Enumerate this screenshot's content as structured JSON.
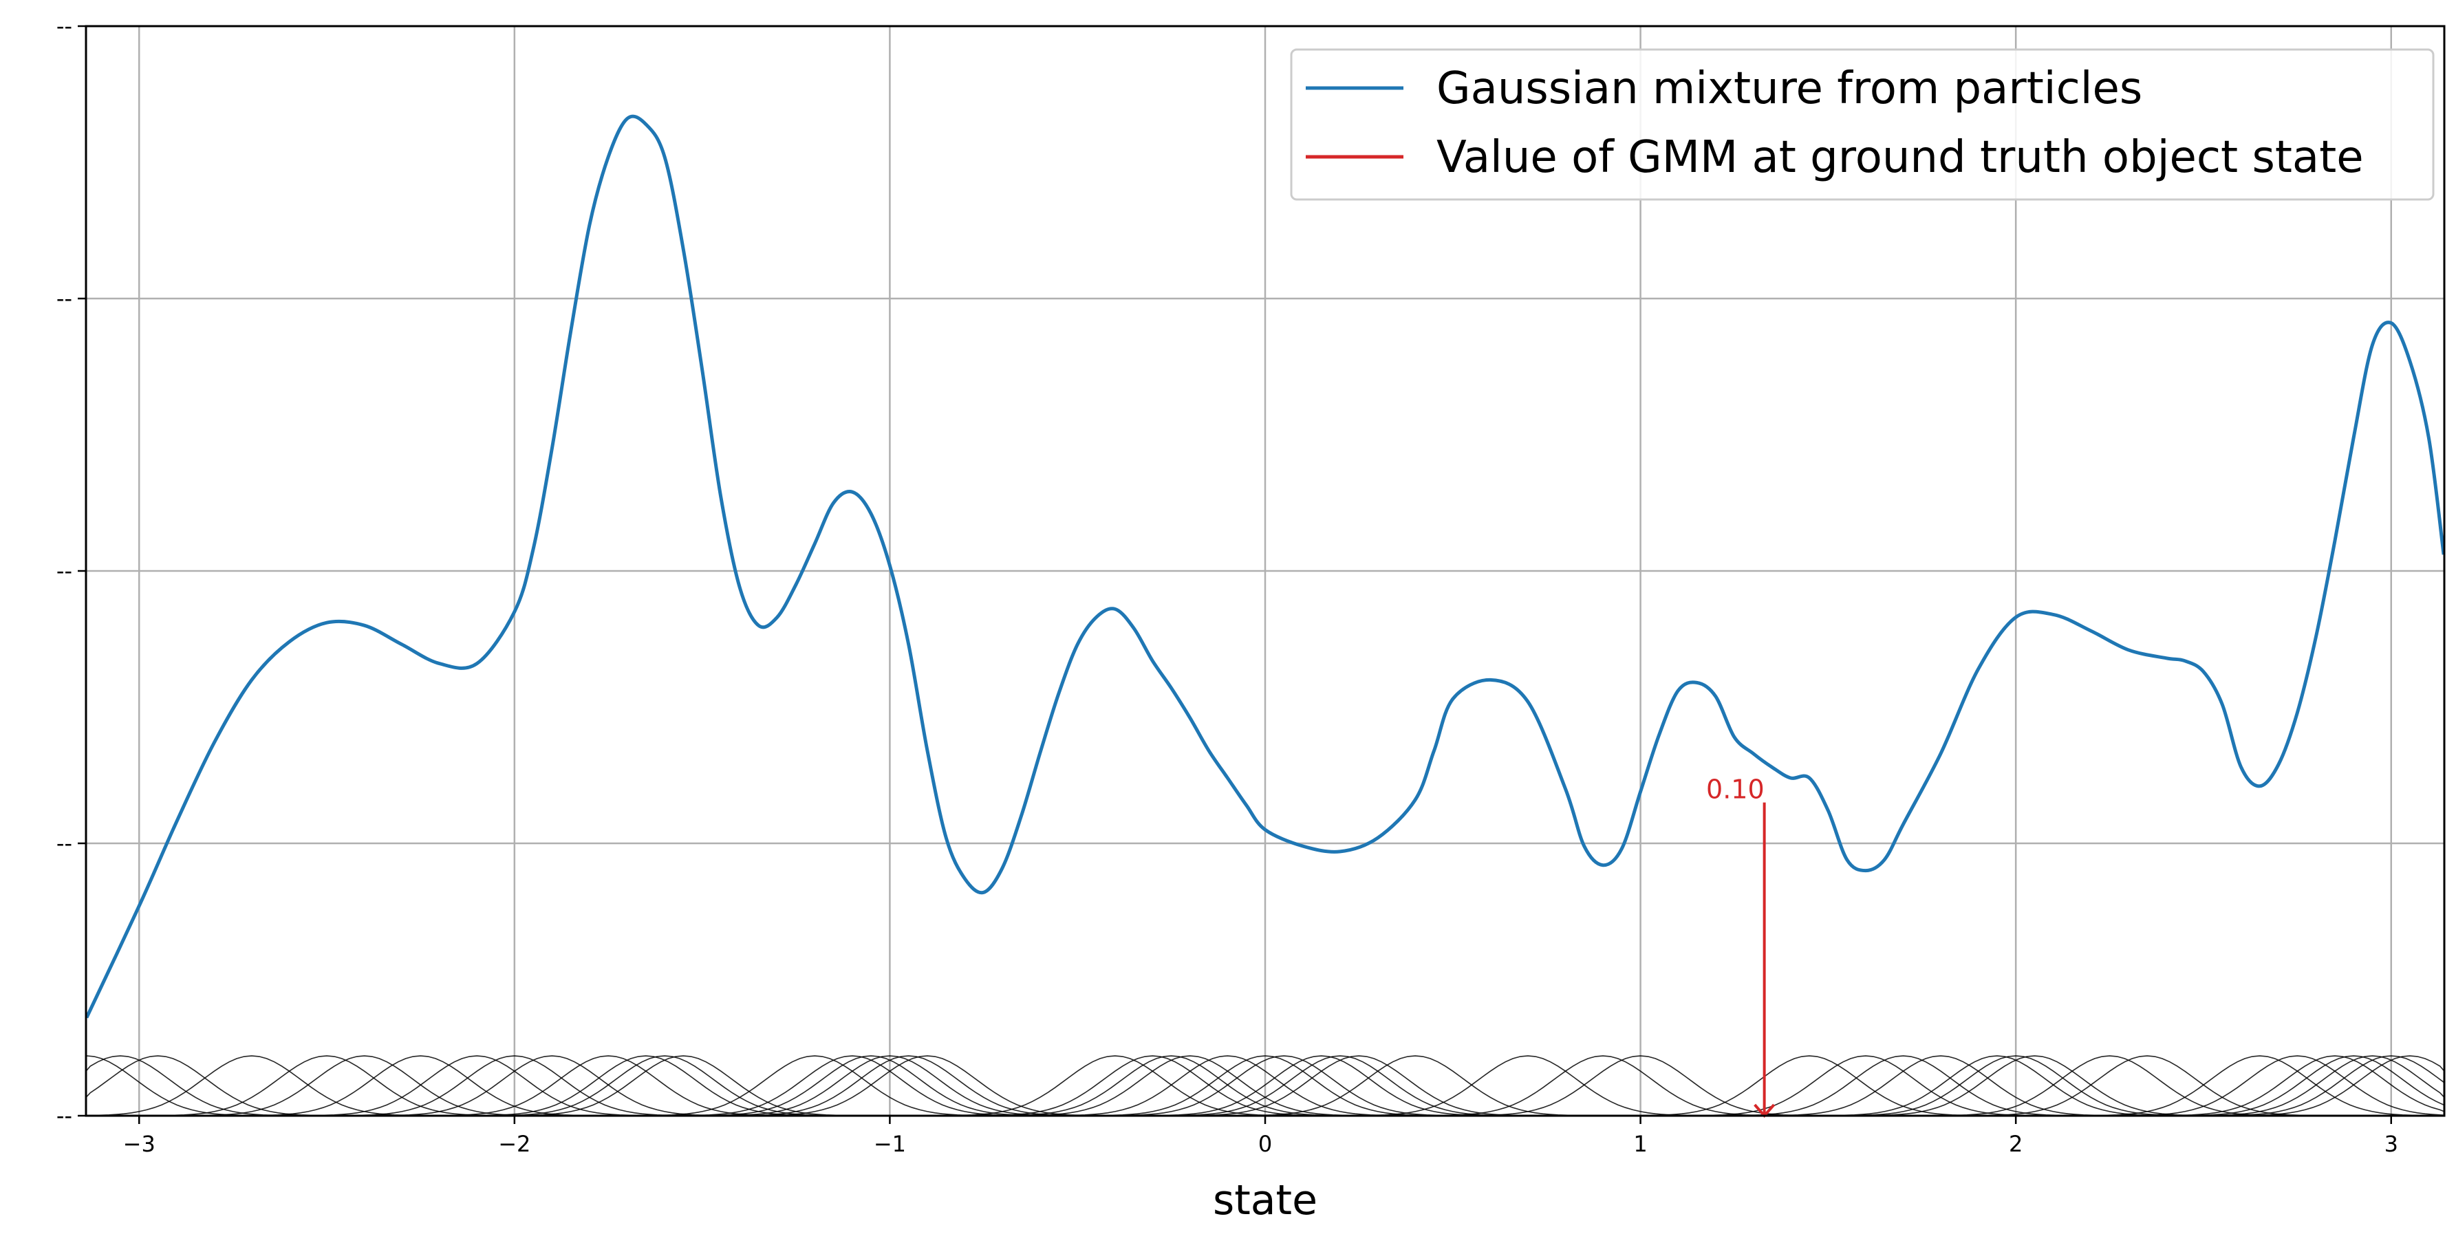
{
  "chart_data": {
    "type": "line",
    "xlabel": "state",
    "xlim": [
      -3.14159,
      3.14159
    ],
    "ylim": [
      0,
      4
    ],
    "x_ticks": [
      -3,
      -2,
      -1,
      0,
      1,
      2,
      3
    ],
    "x_tick_labels": [
      "−3",
      "−2",
      "−1",
      "0",
      "1",
      "2",
      "3"
    ],
    "y_ticks": [
      0,
      1,
      2,
      3,
      4
    ],
    "y_tick_labels": [
      "--",
      "--",
      "--",
      "--",
      "--"
    ],
    "grid": true,
    "legend_position": "top-right",
    "series": [
      {
        "name": "Gaussian mixture from particles",
        "color": "#1f77b4",
        "x": [
          -3.14,
          -3.0,
          -2.9,
          -2.8,
          -2.7,
          -2.6,
          -2.5,
          -2.4,
          -2.3,
          -2.2,
          -2.1,
          -2.0,
          -1.95,
          -1.9,
          -1.85,
          -1.8,
          -1.75,
          -1.7,
          -1.65,
          -1.6,
          -1.55,
          -1.5,
          -1.45,
          -1.4,
          -1.35,
          -1.3,
          -1.25,
          -1.2,
          -1.15,
          -1.1,
          -1.05,
          -1.0,
          -0.95,
          -0.9,
          -0.85,
          -0.8,
          -0.75,
          -0.7,
          -0.65,
          -0.6,
          -0.55,
          -0.5,
          -0.45,
          -0.4,
          -0.35,
          -0.3,
          -0.25,
          -0.2,
          -0.15,
          -0.1,
          -0.05,
          0.0,
          0.1,
          0.2,
          0.3,
          0.4,
          0.45,
          0.5,
          0.6,
          0.7,
          0.8,
          0.85,
          0.9,
          0.95,
          1.0,
          1.05,
          1.1,
          1.15,
          1.2,
          1.25,
          1.3,
          1.35,
          1.4,
          1.45,
          1.5,
          1.55,
          1.6,
          1.65,
          1.7,
          1.8,
          1.9,
          2.0,
          2.1,
          2.2,
          2.3,
          2.4,
          2.45,
          2.5,
          2.55,
          2.6,
          2.65,
          2.7,
          2.75,
          2.8,
          2.85,
          2.9,
          2.95,
          3.0,
          3.05,
          3.1,
          3.14
        ],
        "y": [
          0.36,
          0.77,
          1.08,
          1.37,
          1.6,
          1.74,
          1.81,
          1.8,
          1.73,
          1.66,
          1.66,
          1.85,
          2.08,
          2.45,
          2.88,
          3.27,
          3.52,
          3.66,
          3.64,
          3.52,
          3.18,
          2.74,
          2.27,
          1.94,
          1.8,
          1.83,
          1.95,
          2.1,
          2.25,
          2.29,
          2.21,
          2.02,
          1.73,
          1.34,
          1.02,
          0.87,
          0.82,
          0.91,
          1.1,
          1.33,
          1.55,
          1.73,
          1.83,
          1.86,
          1.79,
          1.67,
          1.57,
          1.46,
          1.34,
          1.24,
          1.14,
          1.05,
          0.99,
          0.97,
          1.02,
          1.16,
          1.34,
          1.53,
          1.6,
          1.52,
          1.2,
          0.99,
          0.92,
          0.98,
          1.19,
          1.4,
          1.56,
          1.59,
          1.54,
          1.39,
          1.33,
          1.28,
          1.24,
          1.24,
          1.12,
          0.94,
          0.9,
          0.94,
          1.07,
          1.33,
          1.64,
          1.83,
          1.84,
          1.78,
          1.71,
          1.68,
          1.67,
          1.63,
          1.51,
          1.28,
          1.21,
          1.29,
          1.48,
          1.76,
          2.11,
          2.49,
          2.83,
          2.91,
          2.77,
          2.49,
          2.06
        ]
      },
      {
        "name": "Value of GMM at ground truth object state",
        "color": "#d62728"
      }
    ],
    "particle_gaussian_centers": [
      -3.14,
      -3.05,
      -2.95,
      -2.7,
      -2.5,
      -2.4,
      -2.25,
      -2.1,
      -2.0,
      -1.9,
      -1.75,
      -1.65,
      -1.6,
      -1.55,
      -1.2,
      -1.1,
      -1.05,
      -1.0,
      -0.95,
      -0.9,
      -0.4,
      -0.3,
      -0.25,
      -0.2,
      -0.1,
      0.0,
      0.05,
      0.15,
      0.2,
      0.25,
      0.4,
      0.7,
      0.9,
      1.0,
      1.45,
      1.6,
      1.7,
      1.8,
      1.95,
      2.0,
      2.05,
      2.25,
      2.35,
      2.65,
      2.75,
      2.85,
      2.9,
      2.95,
      3.0,
      3.05
    ],
    "particle_gaussian_peak": 0.22,
    "annotation": {
      "x": 1.33,
      "y": 1.15,
      "label": "0.10",
      "color": "#d62728"
    }
  }
}
